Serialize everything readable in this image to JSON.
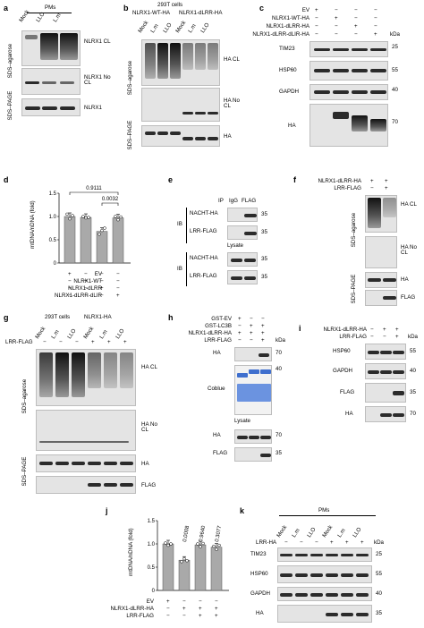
{
  "panels": {
    "a": {
      "letter": "a",
      "header": "PMs",
      "lanes": [
        "Mock",
        "LLO",
        "L.m"
      ],
      "side": [
        "SDS–agarose",
        "SDS–PAGE"
      ],
      "labels": [
        "NLRX1 CL",
        "NLRX1 No CL",
        "NLRX1"
      ]
    },
    "b": {
      "letter": "b",
      "header1": "293T cells",
      "header2": "NLRX1-WT-HA",
      "header3": "NLRX1-dLRR-HA",
      "lanes": [
        "Mock",
        "L.m",
        "LLO",
        "Mock",
        "L.m",
        "LLO"
      ],
      "side": [
        "SDS–agarose",
        "SDS–PAGE"
      ],
      "labels": [
        "HA CL",
        "HA No CL",
        "HA"
      ]
    },
    "c": {
      "letter": "c",
      "rows": [
        {
          "label": "EV",
          "signs": [
            "+",
            "−",
            "−",
            "−"
          ]
        },
        {
          "label": "NLRX1-WT-HA",
          "signs": [
            "−",
            "+",
            "−",
            "−"
          ]
        },
        {
          "label": "NLRX1-dLRR-HA",
          "signs": [
            "−",
            "−",
            "+",
            "−"
          ]
        },
        {
          "label": "NLRX1-dLRR-dLIR-HA",
          "signs": [
            "−",
            "−",
            "−",
            "+"
          ]
        }
      ],
      "unit": "kDa",
      "blots": [
        "TIM23",
        "HSP60",
        "GAPDH",
        "HA"
      ],
      "kda": [
        "25",
        "55",
        "40",
        "70"
      ]
    },
    "d": {
      "letter": "d",
      "ylabel": "mtDNA/nDNA (fold)",
      "yticks": [
        "0",
        "0.5",
        "1.0",
        "1.5"
      ],
      "pvals": [
        "0.9111",
        "0.0032"
      ],
      "rows": [
        {
          "label": "EV",
          "signs": [
            "+",
            "−",
            "−",
            "−"
          ]
        },
        {
          "label": "NLRX1-WT",
          "signs": [
            "−",
            "+",
            "−",
            "−"
          ]
        },
        {
          "label": "NLRX1-dLRR",
          "signs": [
            "−",
            "−",
            "+",
            "−"
          ]
        },
        {
          "label": "NLRX1-dLRR-dLIR",
          "signs": [
            "−",
            "−",
            "−",
            "+"
          ]
        }
      ]
    },
    "e": {
      "letter": "e",
      "header": "IP",
      "lanes": [
        "IgG",
        "FLAG"
      ],
      "ib": "IB",
      "lysate": "Lysate",
      "blots": [
        "NACHT-HA",
        "LRR-FLAG",
        "NACHT-HA",
        "LRR-FLAG"
      ],
      "kda": [
        "35",
        "35",
        "35",
        "35"
      ]
    },
    "f": {
      "letter": "f",
      "rows": [
        {
          "label": "NLRX1-dLRR-HA",
          "signs": [
            "+",
            "+"
          ]
        },
        {
          "label": "LRR-FLAG",
          "signs": [
            "−",
            "+"
          ]
        }
      ],
      "side": [
        "SDS–agarose",
        "SDS–PAGE"
      ],
      "labels": [
        "HA CL",
        "HA No CL",
        "HA",
        "FLAG"
      ]
    },
    "g": {
      "letter": "g",
      "header1": "293T cells",
      "header2": "NLRX1-HA",
      "lanes": [
        "Mock",
        "L.m",
        "LLO",
        "Mock",
        "L.m",
        "LLO"
      ],
      "rowlabel": "LRR-FLAG",
      "signs": [
        "−",
        "−",
        "−",
        "+",
        "+",
        "+"
      ],
      "side": [
        "SDS–agarose",
        "SDS–PAGE"
      ],
      "labels": [
        "HA CL",
        "HA No CL",
        "HA",
        "FLAG"
      ]
    },
    "h": {
      "letter": "h",
      "rows": [
        {
          "label": "GST-EV",
          "signs": [
            "+",
            "−",
            "−"
          ]
        },
        {
          "label": "GST-LC3B",
          "signs": [
            "−",
            "+",
            "+"
          ]
        },
        {
          "label": "NLRX1-dLRR-HA",
          "signs": [
            "+",
            "+",
            "+"
          ]
        },
        {
          "label": "LRR-FLAG",
          "signs": [
            "−",
            "−",
            "+"
          ]
        }
      ],
      "unit": "kDa",
      "blots": [
        "HA",
        "Coblue",
        "HA",
        "FLAG"
      ],
      "lysate": "Lysate",
      "kda": [
        "70",
        "40",
        "70",
        "35"
      ]
    },
    "i": {
      "letter": "i",
      "rows": [
        {
          "label": "NLRX1-dLRR-HA",
          "signs": [
            "−",
            "+",
            "+"
          ]
        },
        {
          "label": "LRR-FLAG",
          "signs": [
            "−",
            "−",
            "+"
          ]
        }
      ],
      "unit": "kDa",
      "blots": [
        "HSP60",
        "GAPDH",
        "FLAG",
        "HA"
      ],
      "kda": [
        "55",
        "40",
        "35",
        "70"
      ]
    },
    "j": {
      "letter": "j",
      "ylabel": "mtDNA/nDNA (fold)",
      "yticks": [
        "0",
        "0.5",
        "1.0",
        "1.5"
      ],
      "pvals": [
        "0.0008",
        "0.9640",
        "0.3077"
      ],
      "rows": [
        {
          "label": "EV",
          "signs": [
            "+",
            "−",
            "−",
            "−"
          ]
        },
        {
          "label": "NLRX1-dLRR-HA",
          "signs": [
            "−",
            "+",
            "+",
            "+"
          ]
        },
        {
          "label": "LRR-FLAG",
          "signs": [
            "−",
            "−",
            "+",
            "+"
          ]
        }
      ]
    },
    "k": {
      "letter": "k",
      "header": "PMs",
      "lanes": [
        "Mock",
        "L.m",
        "LLO",
        "Mock",
        "L.m",
        "LLO"
      ],
      "rowlabel": "LRR-HA",
      "signs": [
        "−",
        "−",
        "−",
        "+",
        "+",
        "+"
      ],
      "unit": "kDa",
      "blots": [
        "TIM23",
        "HSP60",
        "GAPDH",
        "HA"
      ],
      "kda": [
        "25",
        "55",
        "40",
        "35"
      ]
    }
  },
  "chart_data": [
    {
      "type": "bar",
      "categories": [
        "EV",
        "NLRX1-WT",
        "NLRX1-dLRR",
        "NLRX1-dLRR-dLIR"
      ],
      "values": [
        1.0,
        0.98,
        0.68,
        0.97
      ],
      "points": [
        [
          1.05,
          0.95,
          1.02
        ],
        [
          1.0,
          0.97,
          0.98
        ],
        [
          0.62,
          0.7,
          0.75
        ],
        [
          1.0,
          0.93,
          0.99
        ]
      ],
      "ylabel": "mtDNA/nDNA (fold)",
      "ylim": [
        0,
        1.5
      ]
    },
    {
      "type": "bar",
      "categories": [
        "EV",
        "NLRX1-dLRR-HA",
        "NLRX1-dLRR-HA + LRR-FLAG",
        "NLRX1-dLRR-HA + LRR-FLAG"
      ],
      "values": [
        1.0,
        0.65,
        0.98,
        0.93
      ],
      "points": [
        [
          1.02,
          0.97,
          1.0
        ],
        [
          0.62,
          0.68,
          0.64
        ],
        [
          1.0,
          0.94,
          1.01
        ],
        [
          0.95,
          0.88,
          0.97
        ]
      ],
      "ylabel": "mtDNA/nDNA (fold)",
      "ylim": [
        0,
        1.5
      ]
    }
  ]
}
